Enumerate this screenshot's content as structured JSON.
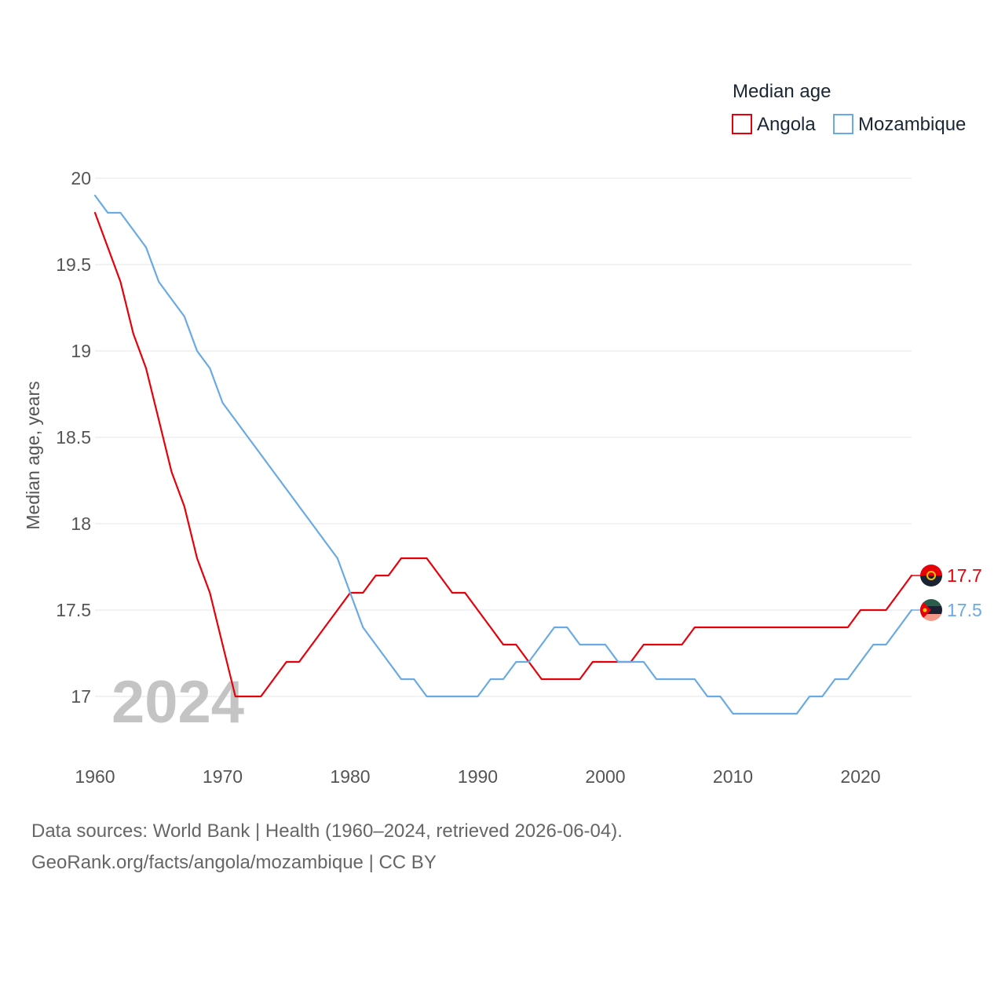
{
  "chart_data": {
    "type": "line",
    "title": "",
    "legend_title": "Median age",
    "legend_position": "top-right",
    "xlabel": "",
    "ylabel": "Median age, years",
    "xlim": [
      1960,
      2024
    ],
    "ylim": [
      16.75,
      20
    ],
    "x_ticks": [
      1960,
      1970,
      1980,
      1990,
      2000,
      2010,
      2020
    ],
    "y_ticks": [
      17,
      17.5,
      18,
      18.5,
      19,
      19.5,
      20
    ],
    "y_tick_labels": [
      "17",
      "17.5",
      "18",
      "18.5",
      "19",
      "19.5",
      "20"
    ],
    "grid": true,
    "current_year_label": "2024",
    "x": [
      1960,
      1961,
      1962,
      1963,
      1964,
      1965,
      1966,
      1967,
      1968,
      1969,
      1970,
      1971,
      1972,
      1973,
      1974,
      1975,
      1976,
      1977,
      1978,
      1979,
      1980,
      1981,
      1982,
      1983,
      1984,
      1985,
      1986,
      1987,
      1988,
      1989,
      1990,
      1991,
      1992,
      1993,
      1994,
      1995,
      1996,
      1997,
      1998,
      1999,
      2000,
      2001,
      2002,
      2003,
      2004,
      2005,
      2006,
      2007,
      2008,
      2009,
      2010,
      2011,
      2012,
      2013,
      2014,
      2015,
      2016,
      2017,
      2018,
      2019,
      2020,
      2021,
      2022,
      2023,
      2024
    ],
    "series": [
      {
        "name": "Angola",
        "color": "#e6000a",
        "end_label": "17.7",
        "values": [
          19.8,
          19.6,
          19.4,
          19.1,
          18.9,
          18.6,
          18.3,
          18.1,
          17.8,
          17.6,
          17.3,
          17.0,
          17.0,
          17.0,
          17.1,
          17.2,
          17.2,
          17.3,
          17.4,
          17.5,
          17.6,
          17.6,
          17.7,
          17.7,
          17.8,
          17.8,
          17.8,
          17.7,
          17.6,
          17.6,
          17.5,
          17.4,
          17.3,
          17.3,
          17.2,
          17.1,
          17.1,
          17.1,
          17.1,
          17.2,
          17.2,
          17.2,
          17.2,
          17.3,
          17.3,
          17.3,
          17.3,
          17.4,
          17.4,
          17.4,
          17.4,
          17.4,
          17.4,
          17.4,
          17.4,
          17.4,
          17.4,
          17.4,
          17.4,
          17.4,
          17.5,
          17.5,
          17.5,
          17.6,
          17.7
        ]
      },
      {
        "name": "Mozambique",
        "color": "#6aaae4",
        "end_label": "17.5",
        "values": [
          19.9,
          19.8,
          19.8,
          19.7,
          19.6,
          19.4,
          19.3,
          19.2,
          19.0,
          18.9,
          18.7,
          18.6,
          18.5,
          18.4,
          18.3,
          18.2,
          18.1,
          18.0,
          17.9,
          17.8,
          17.6,
          17.4,
          17.3,
          17.2,
          17.1,
          17.1,
          17.0,
          17.0,
          17.0,
          17.0,
          17.0,
          17.1,
          17.1,
          17.2,
          17.2,
          17.3,
          17.4,
          17.4,
          17.3,
          17.3,
          17.3,
          17.2,
          17.2,
          17.2,
          17.1,
          17.1,
          17.1,
          17.1,
          17.0,
          17.0,
          16.9,
          16.9,
          16.9,
          16.9,
          16.9,
          16.9,
          17.0,
          17.0,
          17.1,
          17.1,
          17.2,
          17.3,
          17.3,
          17.4,
          17.5
        ]
      }
    ]
  },
  "footer": {
    "source_line": "Data sources: World Bank | Health (1960–2024, retrieved 2026-06-04).",
    "credit_line": "GeoRank.org/facts/angola/mozambique | CC BY"
  },
  "flags": {
    "angola_icon": "angola-flag-icon",
    "mozambique_icon": "mozambique-flag-icon"
  }
}
